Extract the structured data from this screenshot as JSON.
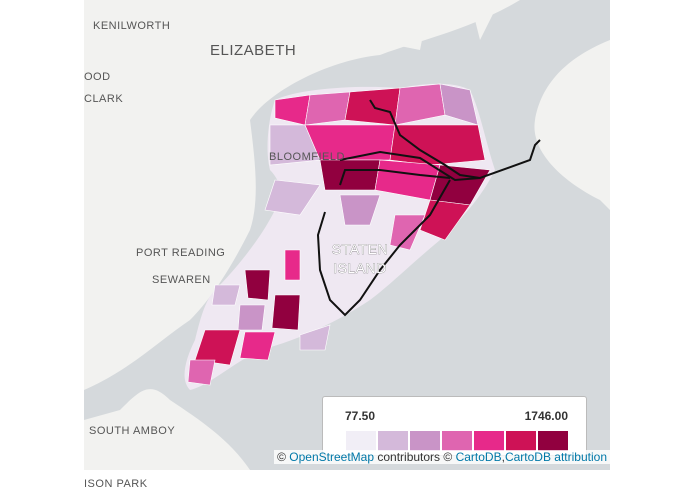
{
  "map": {
    "places": [
      "KENILWORTH",
      "ELIZABETH",
      "OOD",
      "CLARK",
      "BLOOMFIELD",
      "STATEN",
      "ISLAND",
      "PORT READING",
      "SEWAREN",
      "SOUTH AMBOY",
      "ISON PARK"
    ],
    "legend": {
      "min_label": "77.50",
      "max_label": "1746.00",
      "colors": [
        "#f1eef6",
        "#d4b9da",
        "#c994c7",
        "#df65b0",
        "#e7298a",
        "#ce1256",
        "#91003f"
      ]
    },
    "attribution": [
      "©",
      "OpenStreetMap",
      "contributors ©",
      "CartoDB",
      ",",
      "CartoDB",
      "attribution"
    ]
  }
}
